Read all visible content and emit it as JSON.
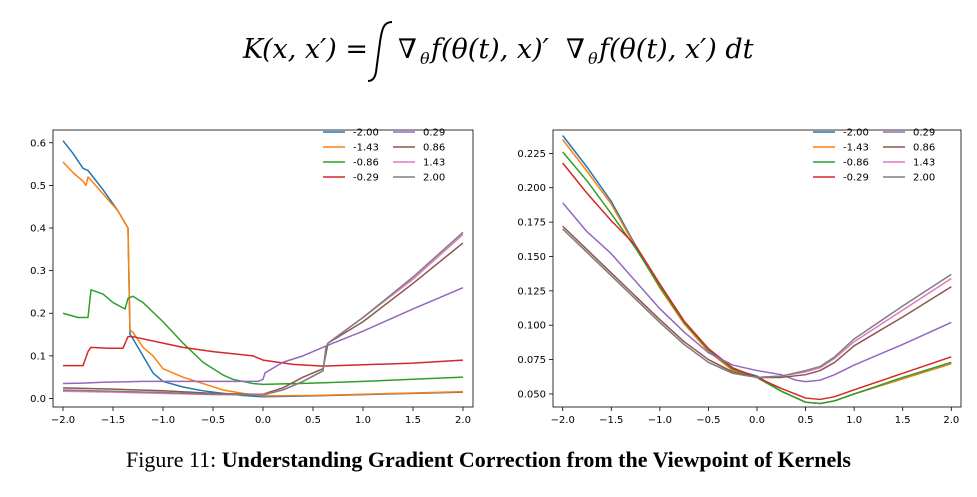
{
  "equation": {
    "lhs_func": "K",
    "lhs_args": "(x, x′) =",
    "integrand_a": "∇",
    "integrand_b": "θ",
    "integrand_c": "f(θ(t), x)′",
    "integrand_d": "∇",
    "integrand_e": "θ",
    "integrand_f": "f(θ(t), x′) dt"
  },
  "caption": {
    "prefix": "Figure 11:",
    "title": "Understanding Gradient Correction from the Viewpoint of Kernels"
  },
  "colors": {
    "-2.00": "#1f77b4",
    "-1.43": "#ff7f0e",
    "-0.86": "#2ca02c",
    "-0.29": "#d62728",
    "0.29": "#9467bd",
    "0.86": "#8c564b",
    "1.43": "#e377c2",
    "2.00": "#7f7f7f"
  },
  "chart_data": [
    {
      "type": "line",
      "title": "",
      "xlabel": "",
      "ylabel": "",
      "xlim": [
        -2.1,
        2.1
      ],
      "ylim": [
        -0.02,
        0.63
      ],
      "xticks": [
        -2.0,
        -1.5,
        -1.0,
        -0.5,
        0.0,
        0.5,
        1.0,
        1.5,
        2.0
      ],
      "xtick_labels": [
        "−2.0",
        "−1.5",
        "−1.0",
        "−0.5",
        "0.0",
        "0.5",
        "1.0",
        "1.5",
        "2.0"
      ],
      "yticks": [
        0.0,
        0.1,
        0.2,
        0.3,
        0.4,
        0.5,
        0.6
      ],
      "ytick_labels": [
        "0.0",
        "0.1",
        "0.2",
        "0.3",
        "0.4",
        "0.5",
        "0.6"
      ],
      "legend": "top-right, 2 columns",
      "series": [
        {
          "name": "-2.00",
          "x": [
            -2.0,
            -1.9,
            -1.8,
            -1.75,
            -1.6,
            -1.45,
            -1.35,
            -1.33,
            -1.3,
            -1.2,
            -1.1,
            -1.0,
            -0.8,
            -0.6,
            -0.4,
            -0.2,
            0.0,
            0.5,
            1.0,
            1.5,
            2.0
          ],
          "y": [
            0.605,
            0.575,
            0.54,
            0.535,
            0.49,
            0.44,
            0.4,
            0.15,
            0.14,
            0.1,
            0.06,
            0.04,
            0.027,
            0.018,
            0.012,
            0.007,
            0.004,
            0.006,
            0.009,
            0.012,
            0.015
          ]
        },
        {
          "name": "-1.43",
          "x": [
            -2.0,
            -1.9,
            -1.8,
            -1.77,
            -1.75,
            -1.6,
            -1.45,
            -1.35,
            -1.33,
            -1.3,
            -1.2,
            -1.1,
            -1.0,
            -0.8,
            -0.6,
            -0.4,
            -0.2,
            0.0,
            0.5,
            1.0,
            1.5,
            2.0
          ],
          "y": [
            0.555,
            0.53,
            0.51,
            0.5,
            0.52,
            0.48,
            0.44,
            0.4,
            0.16,
            0.155,
            0.12,
            0.1,
            0.07,
            0.05,
            0.035,
            0.02,
            0.012,
            0.006,
            0.007,
            0.01,
            0.013,
            0.016
          ]
        },
        {
          "name": "-0.86",
          "x": [
            -2.0,
            -1.85,
            -1.75,
            -1.72,
            -1.6,
            -1.5,
            -1.38,
            -1.35,
            -1.3,
            -1.2,
            -1.0,
            -0.8,
            -0.6,
            -0.4,
            -0.3,
            -0.1,
            0.0,
            0.5,
            1.0,
            1.5,
            2.0
          ],
          "y": [
            0.2,
            0.19,
            0.19,
            0.255,
            0.245,
            0.225,
            0.21,
            0.235,
            0.24,
            0.225,
            0.18,
            0.13,
            0.085,
            0.055,
            0.045,
            0.035,
            0.033,
            0.036,
            0.04,
            0.045,
            0.05
          ]
        },
        {
          "name": "-0.29",
          "x": [
            -2.0,
            -1.8,
            -1.75,
            -1.72,
            -1.55,
            -1.4,
            -1.35,
            -1.3,
            -1.0,
            -0.8,
            -0.5,
            -0.1,
            0.0,
            0.3,
            0.6,
            1.0,
            1.5,
            2.0
          ],
          "y": [
            0.077,
            0.077,
            0.11,
            0.12,
            0.118,
            0.118,
            0.145,
            0.145,
            0.13,
            0.12,
            0.11,
            0.1,
            0.09,
            0.08,
            0.076,
            0.079,
            0.083,
            0.09
          ]
        },
        {
          "name": "0.29",
          "x": [
            -2.0,
            -1.8,
            -1.6,
            -1.2,
            -0.8,
            -0.4,
            -0.05,
            0.0,
            0.02,
            0.2,
            0.4,
            0.6,
            0.65,
            1.0,
            1.5,
            2.0
          ],
          "y": [
            0.035,
            0.036,
            0.038,
            0.04,
            0.04,
            0.04,
            0.04,
            0.045,
            0.06,
            0.085,
            0.1,
            0.12,
            0.125,
            0.158,
            0.21,
            0.26
          ]
        },
        {
          "name": "0.86",
          "x": [
            -2.0,
            -1.5,
            -1.0,
            -0.5,
            -0.1,
            0.0,
            0.2,
            0.4,
            0.6,
            0.63,
            0.65,
            1.0,
            1.5,
            2.0
          ],
          "y": [
            0.025,
            0.022,
            0.018,
            0.012,
            0.01,
            0.01,
            0.025,
            0.05,
            0.07,
            0.105,
            0.13,
            0.18,
            0.27,
            0.365
          ]
        },
        {
          "name": "1.43",
          "x": [
            -2.0,
            -1.5,
            -1.0,
            -0.5,
            0.0,
            0.2,
            0.4,
            0.6,
            0.63,
            0.65,
            1.0,
            1.5,
            2.0
          ],
          "y": [
            0.017,
            0.015,
            0.012,
            0.009,
            0.009,
            0.02,
            0.04,
            0.065,
            0.12,
            0.13,
            0.19,
            0.28,
            0.385
          ]
        },
        {
          "name": "2.00",
          "x": [
            -2.0,
            -1.5,
            -1.0,
            -0.5,
            0.0,
            0.2,
            0.4,
            0.6,
            0.63,
            0.65,
            1.0,
            1.5,
            2.0
          ],
          "y": [
            0.02,
            0.017,
            0.014,
            0.01,
            0.008,
            0.02,
            0.04,
            0.065,
            0.12,
            0.13,
            0.19,
            0.285,
            0.39
          ]
        }
      ]
    },
    {
      "type": "line",
      "title": "",
      "xlabel": "",
      "ylabel": "",
      "xlim": [
        -2.1,
        2.1
      ],
      "ylim": [
        0.0405,
        0.242
      ],
      "xticks": [
        -2.0,
        -1.5,
        -1.0,
        -0.5,
        0.0,
        0.5,
        1.0,
        1.5,
        2.0
      ],
      "xtick_labels": [
        "−2.0",
        "−1.5",
        "−1.0",
        "−0.5",
        "0.0",
        "0.5",
        "1.0",
        "1.5",
        "2.0"
      ],
      "yticks": [
        0.05,
        0.075,
        0.1,
        0.125,
        0.15,
        0.175,
        0.2,
        0.225
      ],
      "ytick_labels": [
        "0.050",
        "0.075",
        "0.100",
        "0.125",
        "0.150",
        "0.175",
        "0.200",
        "0.225"
      ],
      "legend": "top-right, 2 columns",
      "series": [
        {
          "name": "-2.00",
          "x": [
            -2.0,
            -1.75,
            -1.5,
            -1.25,
            -1.0,
            -0.75,
            -0.5,
            -0.25,
            0.0,
            0.25,
            0.5,
            0.65,
            0.8,
            1.0,
            1.5,
            2.0
          ],
          "y": [
            0.238,
            0.215,
            0.19,
            0.158,
            0.128,
            0.102,
            0.082,
            0.068,
            0.063,
            0.052,
            0.044,
            0.043,
            0.045,
            0.05,
            0.061,
            0.072
          ]
        },
        {
          "name": "-1.43",
          "x": [
            -2.0,
            -1.75,
            -1.5,
            -1.25,
            -1.0,
            -0.75,
            -0.5,
            -0.25,
            0.0,
            0.25,
            0.5,
            0.65,
            0.8,
            1.0,
            1.5,
            2.0
          ],
          "y": [
            0.235,
            0.212,
            0.188,
            0.157,
            0.127,
            0.101,
            0.081,
            0.067,
            0.062,
            0.052,
            0.044,
            0.043,
            0.045,
            0.05,
            0.061,
            0.072
          ]
        },
        {
          "name": "-0.86",
          "x": [
            -2.0,
            -1.75,
            -1.5,
            -1.25,
            -1.0,
            -0.75,
            -0.5,
            -0.25,
            0.0,
            0.25,
            0.5,
            0.65,
            0.8,
            1.0,
            1.5,
            2.0
          ],
          "y": [
            0.226,
            0.205,
            0.181,
            0.156,
            0.128,
            0.102,
            0.082,
            0.068,
            0.062,
            0.052,
            0.044,
            0.043,
            0.045,
            0.05,
            0.062,
            0.073
          ]
        },
        {
          "name": "-0.29",
          "x": [
            -2.0,
            -1.75,
            -1.5,
            -1.25,
            -1.0,
            -0.75,
            -0.5,
            -0.25,
            0.0,
            0.25,
            0.5,
            0.65,
            0.8,
            1.0,
            1.5,
            2.0
          ],
          "y": [
            0.218,
            0.196,
            0.176,
            0.158,
            0.13,
            0.103,
            0.083,
            0.069,
            0.062,
            0.054,
            0.047,
            0.046,
            0.048,
            0.053,
            0.065,
            0.077
          ]
        },
        {
          "name": "0.29",
          "x": [
            -2.0,
            -1.75,
            -1.5,
            -1.25,
            -1.0,
            -0.75,
            -0.5,
            -0.25,
            0.0,
            0.25,
            0.4,
            0.5,
            0.65,
            0.8,
            1.0,
            1.5,
            2.0
          ],
          "y": [
            0.189,
            0.168,
            0.152,
            0.132,
            0.112,
            0.095,
            0.08,
            0.071,
            0.067,
            0.064,
            0.06,
            0.059,
            0.06,
            0.064,
            0.071,
            0.086,
            0.102
          ]
        },
        {
          "name": "0.86",
          "x": [
            -2.0,
            -1.75,
            -1.5,
            -1.25,
            -1.0,
            -0.75,
            -0.5,
            -0.25,
            0.0,
            0.25,
            0.5,
            0.65,
            0.8,
            1.0,
            1.5,
            2.0
          ],
          "y": [
            0.172,
            0.155,
            0.138,
            0.121,
            0.104,
            0.088,
            0.075,
            0.066,
            0.062,
            0.062,
            0.064,
            0.067,
            0.073,
            0.085,
            0.106,
            0.128
          ]
        },
        {
          "name": "1.43",
          "x": [
            -2.0,
            -1.75,
            -1.5,
            -1.25,
            -1.0,
            -0.75,
            -0.5,
            -0.25,
            0.0,
            0.25,
            0.5,
            0.65,
            0.8,
            1.0,
            1.5,
            2.0
          ],
          "y": [
            0.17,
            0.153,
            0.136,
            0.119,
            0.102,
            0.086,
            0.073,
            0.065,
            0.062,
            0.063,
            0.066,
            0.069,
            0.076,
            0.088,
            0.111,
            0.134
          ]
        },
        {
          "name": "2.00",
          "x": [
            -2.0,
            -1.75,
            -1.5,
            -1.25,
            -1.0,
            -0.75,
            -0.5,
            -0.25,
            0.0,
            0.25,
            0.5,
            0.65,
            0.8,
            1.0,
            1.5,
            2.0
          ],
          "y": [
            0.17,
            0.153,
            0.136,
            0.119,
            0.102,
            0.086,
            0.073,
            0.065,
            0.062,
            0.063,
            0.067,
            0.07,
            0.077,
            0.09,
            0.114,
            0.137
          ]
        }
      ]
    }
  ]
}
